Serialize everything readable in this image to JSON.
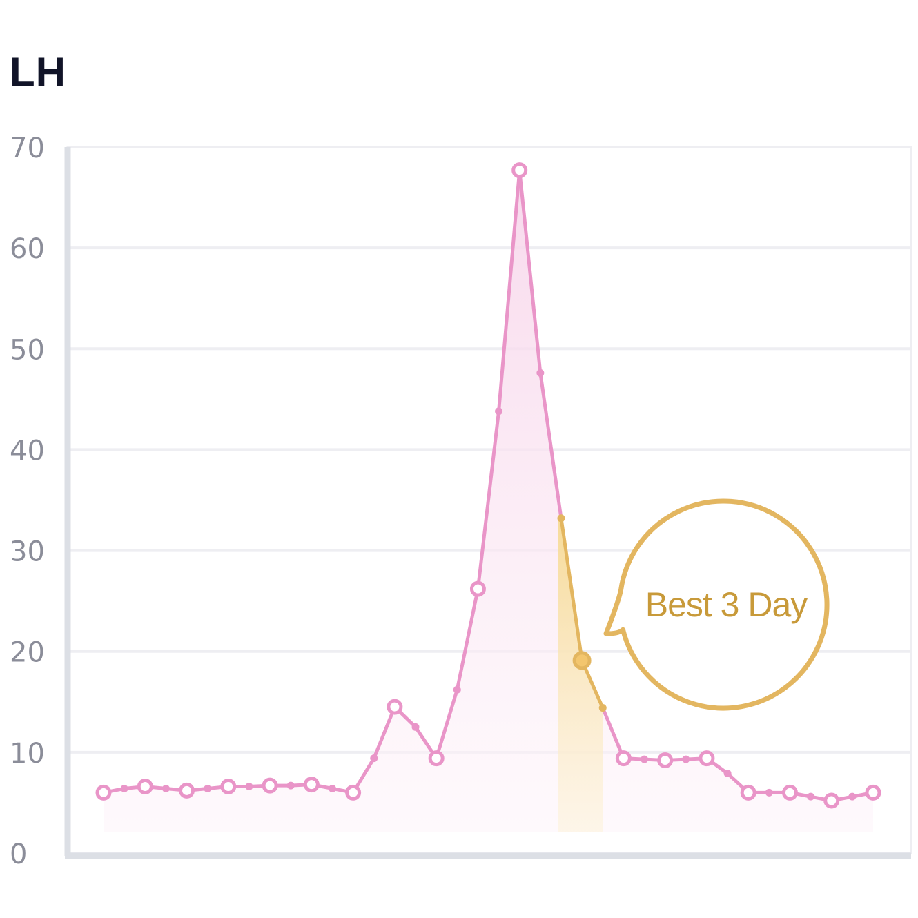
{
  "chart_data": {
    "type": "line",
    "title": "LH",
    "xlabel": "",
    "ylabel": "",
    "ylim": [
      0,
      70
    ],
    "yticks": [
      0,
      10,
      20,
      30,
      40,
      50,
      60,
      70
    ],
    "grid": true,
    "x": [
      1,
      2,
      3,
      4,
      5,
      6,
      7,
      8,
      9,
      10,
      11,
      12,
      13,
      14,
      15,
      16,
      17,
      18,
      19,
      20,
      21,
      22,
      23,
      24,
      25,
      26,
      27,
      28,
      29,
      30,
      31,
      32,
      33,
      34,
      35,
      36,
      37,
      38
    ],
    "values": [
      6.0,
      6.4,
      6.6,
      6.4,
      6.2,
      6.4,
      6.6,
      6.6,
      6.7,
      6.7,
      6.8,
      6.4,
      6.0,
      9.4,
      14.5,
      12.5,
      9.4,
      16.2,
      26.2,
      43.8,
      67.7,
      47.6,
      33.2,
      19.1,
      14.4,
      9.4,
      9.3,
      9.2,
      9.3,
      9.4,
      7.9,
      6.0,
      6.0,
      6.0,
      5.6,
      5.2,
      5.6,
      6.0
    ],
    "major_markers": [
      1,
      3,
      5,
      7,
      9,
      11,
      13,
      15,
      17,
      19,
      21,
      24,
      26,
      28,
      30,
      32,
      34,
      36,
      38
    ],
    "highlight": {
      "start": 23,
      "end": 25,
      "marker": 24,
      "color": "#e3b660"
    },
    "callout": {
      "text": "Best 3 Day",
      "color": "#e3b660"
    },
    "colors": {
      "line": "#e995c8",
      "fill": "#fbe6f3",
      "grid": "#eeeef2",
      "axis": "#dcdfe5",
      "tick_text": "#8b8d99",
      "title": "#111428"
    }
  }
}
